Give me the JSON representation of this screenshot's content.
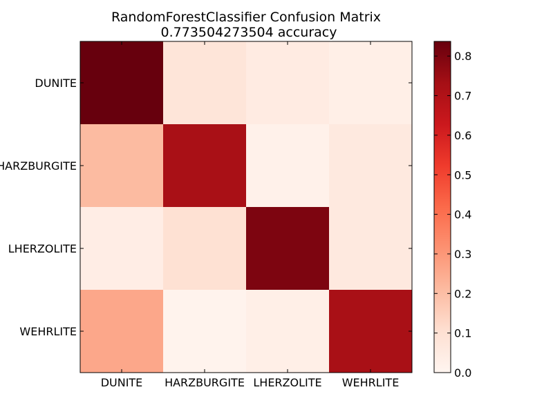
{
  "chart_data": {
    "type": "heatmap",
    "title": "RandomForestClassifier Confusion Matrix",
    "subtitle": "0.773504273504 accuracy",
    "row_labels": [
      "DUNITE",
      "HARZBURGITE",
      "LHERZOLITE",
      "WEHRLITE"
    ],
    "col_labels": [
      "DUNITE",
      "HARZBURGITE",
      "LHERZOLITE",
      "WEHRLITE"
    ],
    "values": [
      [
        0.84,
        0.08,
        0.05,
        0.03
      ],
      [
        0.21,
        0.72,
        0.02,
        0.06
      ],
      [
        0.04,
        0.1,
        0.8,
        0.06
      ],
      [
        0.26,
        0.01,
        0.03,
        0.72
      ]
    ],
    "colormap": "Reds",
    "colorbar": {
      "vmin": 0.0,
      "vmax": 0.837,
      "ticks": [
        0.0,
        0.1,
        0.2,
        0.3,
        0.4,
        0.5,
        0.6,
        0.7,
        0.8
      ],
      "tick_labels": [
        "0.0",
        "0.1",
        "0.2",
        "0.3",
        "0.4",
        "0.5",
        "0.6",
        "0.7",
        "0.8"
      ]
    },
    "colors": {
      "Reds": [
        "#fff5f0",
        "#fee0d2",
        "#fcbba1",
        "#fc9272",
        "#fb6a4a",
        "#ef3b2c",
        "#cb181d",
        "#a50f15",
        "#67000d"
      ]
    }
  }
}
